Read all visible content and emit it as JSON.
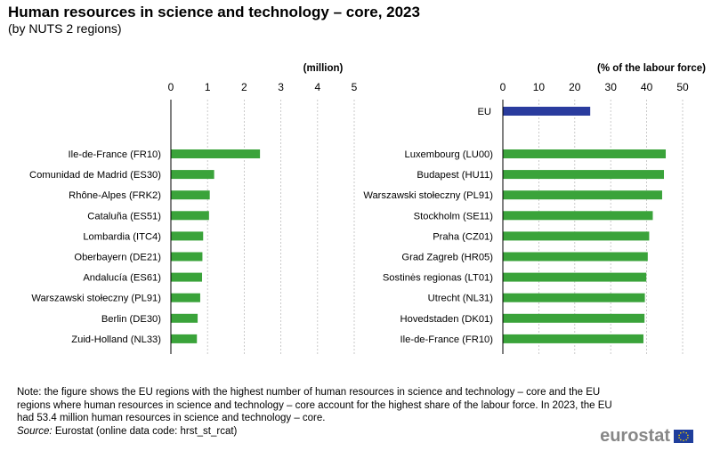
{
  "title": "Human resources in science and technology – core, 2023",
  "subtitle": "(by NUTS  2 regions)",
  "colors": {
    "bar": "#3aa33a",
    "eu_bar": "#2a3c9e",
    "grid": "#bdbdbd",
    "text": "#000000",
    "logo": "#878787",
    "flag": "#1f3e9c"
  },
  "chart_data": [
    {
      "type": "bar",
      "orientation": "horizontal",
      "axis_label": "(million)",
      "xlim": [
        0,
        5
      ],
      "ticks": [
        0,
        1,
        2,
        3,
        4,
        5
      ],
      "grid": true,
      "categories": [
        "Ile-de-France (FR10)",
        "Comunidad de Madrid (ES30)",
        "Rhône-Alpes (FRK2)",
        "Cataluña (ES51)",
        "Lombardia (ITC4)",
        "Oberbayern (DE21)",
        "Andalucía (ES61)",
        "Warszawski stołeczny (PL91)",
        "Berlin (DE30)",
        "Zuid-Holland (NL33)"
      ],
      "values": [
        2.43,
        1.18,
        1.06,
        1.04,
        0.88,
        0.86,
        0.85,
        0.8,
        0.73,
        0.71
      ]
    },
    {
      "type": "bar",
      "orientation": "horizontal",
      "axis_label": "(% of the labour force)",
      "xlim": [
        0,
        50
      ],
      "ticks": [
        0,
        10,
        20,
        30,
        40,
        50
      ],
      "grid": true,
      "eu": {
        "label": "EU",
        "value": 24.3
      },
      "categories": [
        "Luxembourg (LU00)",
        "Budapest (HU11)",
        "Warszawski stołeczny (PL91)",
        "Stockholm (SE11)",
        "Praha (CZ01)",
        "Grad Zagreb (HR05)",
        "Sostinės regionas (LT01)",
        "Utrecht (NL31)",
        "Hovedstaden (DK01)",
        "Ile-de-France (FR10)"
      ],
      "values": [
        45.3,
        44.8,
        44.3,
        41.7,
        40.7,
        40.3,
        39.9,
        39.5,
        39.4,
        39.1
      ]
    }
  ],
  "note": "Note: the figure shows the EU regions with the highest number of human resources in science and technology – core and the EU regions where human resources in science and technology – core account for the highest share of the labour force. In 2023, the EU had 53.4 million human resources in science and technology – core.",
  "source": {
    "label": "Source:",
    "text": " Eurostat (online data code: hrst_st_rcat)"
  },
  "logo": {
    "text": "eurostat"
  }
}
